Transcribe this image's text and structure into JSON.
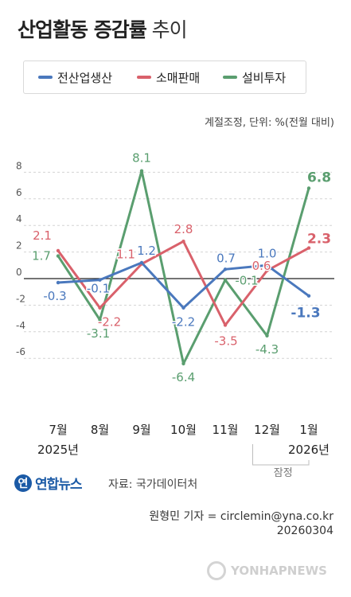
{
  "title": {
    "bold": "산업활동 증감률",
    "light": "추이"
  },
  "legend": [
    {
      "name": "전산업생산",
      "color": "#4a78bd"
    },
    {
      "name": "소매판매",
      "color": "#d9616b"
    },
    {
      "name": "설비투자",
      "color": "#5a9e6f"
    }
  ],
  "chart_data": {
    "type": "line",
    "note": "계절조정, 단위: %(전월 대비)",
    "categories": [
      "7월",
      "8월",
      "9월",
      "10월",
      "11월",
      "12월",
      "1월"
    ],
    "year_labels": [
      "2025년",
      "2026년"
    ],
    "prelim_label": "잠정",
    "yticks": [
      "8",
      "6",
      "4",
      "2",
      "0",
      "-2",
      "-4",
      "-6"
    ],
    "ylim": [
      -7.8,
      9.2
    ],
    "grid": true,
    "series": [
      {
        "name": "전산업생산",
        "color": "#4a78bd",
        "values": [
          -0.3,
          -0.1,
          1.2,
          -2.2,
          0.7,
          1.0,
          -1.3
        ],
        "labels": [
          "-0.3",
          "-0.1",
          "1.2",
          "-2.2",
          "0.7",
          "1.0",
          "-1.3"
        ]
      },
      {
        "name": "소매판매",
        "color": "#d9616b",
        "values": [
          2.1,
          -2.2,
          1.1,
          2.8,
          -3.5,
          0.6,
          2.3
        ],
        "labels": [
          "2.1",
          "-2.2",
          "1.1",
          "2.8",
          "-3.5",
          "0.6",
          "2.3"
        ]
      },
      {
        "name": "설비투자",
        "color": "#5a9e6f",
        "values": [
          1.7,
          -3.1,
          8.1,
          -6.4,
          -0.1,
          -4.3,
          6.8
        ],
        "labels": [
          "1.7",
          "-3.1",
          "8.1",
          "-6.4",
          "-0.1",
          "-4.3",
          "6.8"
        ]
      }
    ]
  },
  "logo": {
    "mark": "연",
    "text": "연합뉴스"
  },
  "source": "자료: 국가데이터처",
  "credit": {
    "line1": "원형민 기자 = circlemin@yna.co.kr",
    "line2": "20260304"
  },
  "watermark": "YONHAPNEWS"
}
